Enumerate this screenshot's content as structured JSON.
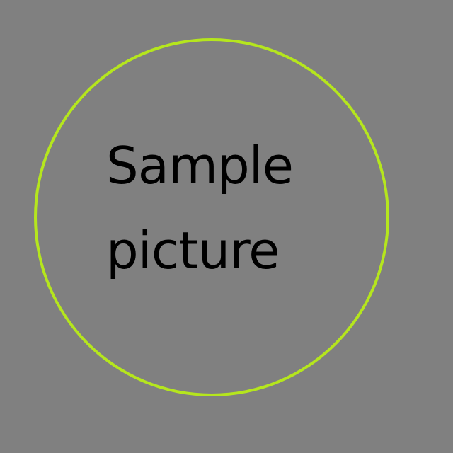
{
  "picture": {
    "background_color": "#808080",
    "circle_color": "#b5e61d",
    "text_color": "#000000",
    "caption_line1": "Sample",
    "caption_line2": "picture"
  }
}
